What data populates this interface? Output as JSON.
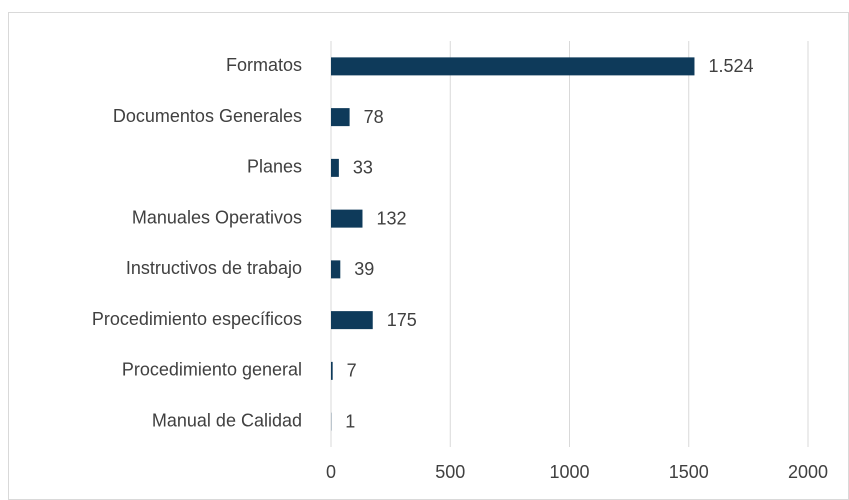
{
  "chart_data": {
    "type": "bar",
    "orientation": "horizontal",
    "categories": [
      "Formatos",
      "Documentos Generales",
      "Planes",
      "Manuales Operativos",
      "Instructivos de trabajo",
      "Procedimiento específicos",
      "Procedimiento general",
      "Manual de Calidad"
    ],
    "values": [
      1524,
      78,
      33,
      132,
      39,
      175,
      7,
      1
    ],
    "value_labels": [
      "1.524",
      "78",
      "33",
      "132",
      "39",
      "175",
      "7",
      "1"
    ],
    "color": "#0e3a5a",
    "xlim": [
      0,
      2000
    ],
    "xticks": [
      0,
      500,
      1000,
      1500,
      2000
    ],
    "grid": true
  }
}
